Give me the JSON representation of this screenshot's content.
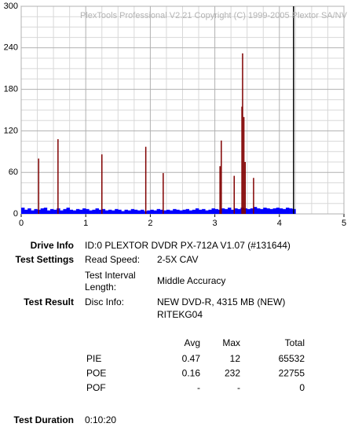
{
  "chart_data": {
    "type": "spikes",
    "annotation": "PlexTools Professional V2.21 Copyright (C) 1999-2005 Plextor SA/NV",
    "xlim": [
      0,
      5
    ],
    "xticks": [
      0,
      1,
      2,
      3,
      4,
      5
    ],
    "ylim": [
      0,
      300
    ],
    "yticks": [
      0,
      60,
      120,
      180,
      240,
      300
    ],
    "grid": true,
    "series": [
      {
        "color": "#0000ff",
        "x": [
          0,
          0.05,
          0.1,
          0.15,
          0.2,
          0.25,
          0.3,
          0.35,
          0.4,
          0.45,
          0.5,
          0.55,
          0.6,
          0.65,
          0.7,
          0.75,
          0.8,
          0.85,
          0.9,
          0.95,
          1,
          1.05,
          1.1,
          1.15,
          1.2,
          1.25,
          1.3,
          1.35,
          1.4,
          1.45,
          1.5,
          1.55,
          1.6,
          1.65,
          1.7,
          1.75,
          1.8,
          1.85,
          1.9,
          1.95,
          2,
          2.05,
          2.1,
          2.15,
          2.2,
          2.25,
          2.3,
          2.35,
          2.4,
          2.45,
          2.5,
          2.55,
          2.6,
          2.65,
          2.7,
          2.75,
          2.8,
          2.85,
          2.9,
          2.95,
          3,
          3.05,
          3.1,
          3.15,
          3.2,
          3.25,
          3.3,
          3.35,
          3.4,
          3.45,
          3.5,
          3.55,
          3.6,
          3.65,
          3.7,
          3.75,
          3.8,
          3.85,
          3.9,
          3.95,
          4,
          4.05,
          4.1,
          4.15,
          4.2
        ],
        "values": [
          9,
          6,
          8,
          5,
          7,
          6,
          8,
          9,
          5,
          7,
          6,
          8,
          5,
          7,
          9,
          6,
          5,
          7,
          6,
          8,
          7,
          5,
          6,
          8,
          6,
          7,
          5,
          6,
          5,
          7,
          6,
          4,
          6,
          5,
          7,
          6,
          5,
          6,
          4,
          5,
          6,
          5,
          7,
          6,
          5,
          6,
          5,
          7,
          6,
          5,
          6,
          7,
          5,
          6,
          8,
          6,
          7,
          5,
          6,
          8,
          7,
          6,
          8,
          7,
          9,
          6,
          8,
          7,
          9,
          8,
          7,
          8,
          10,
          8,
          7,
          9,
          8,
          7,
          8,
          9,
          8,
          7,
          9,
          8,
          7
        ]
      },
      {
        "color": "#800000",
        "x": [
          0.27,
          0.57,
          1.25,
          1.93,
          2.2,
          3.08,
          3.1,
          3.3,
          3.42,
          3.43,
          3.45,
          3.47,
          3.6
        ],
        "values": [
          80,
          108,
          86,
          97,
          59,
          69,
          106,
          55,
          155,
          232,
          140,
          75,
          52
        ]
      }
    ],
    "marker_x": 4.22,
    "marker_color": "#000000"
  },
  "info": {
    "drive_info": {
      "label": "Drive Info",
      "value": "ID:0 PLEXTOR DVDR PX-712A V1.07 (#131644)"
    },
    "test_settings": {
      "label": "Test Settings",
      "items": [
        {
          "label": [
            "Read Speed:"
          ],
          "value": "2-5X CAV"
        },
        {
          "label": [
            "Test Interval",
            "Length:"
          ],
          "value": "Middle Accuracy"
        }
      ]
    },
    "test_result": {
      "label": "Test Result",
      "item": {
        "label": "Disc Info:",
        "value": [
          "NEW DVD-R, 4315 MB (NEW)",
          "RITEKG04"
        ]
      }
    },
    "results": {
      "columns": [
        "Avg",
        "Max",
        "Total"
      ],
      "rows": [
        [
          "PIE",
          "0.47",
          "12",
          "65532"
        ],
        [
          "POE",
          "0.16",
          "232",
          "22755"
        ],
        [
          "POF",
          "-",
          "-",
          "0"
        ]
      ]
    },
    "test_duration": {
      "label": "Test Duration",
      "value": "0:10:20"
    }
  }
}
